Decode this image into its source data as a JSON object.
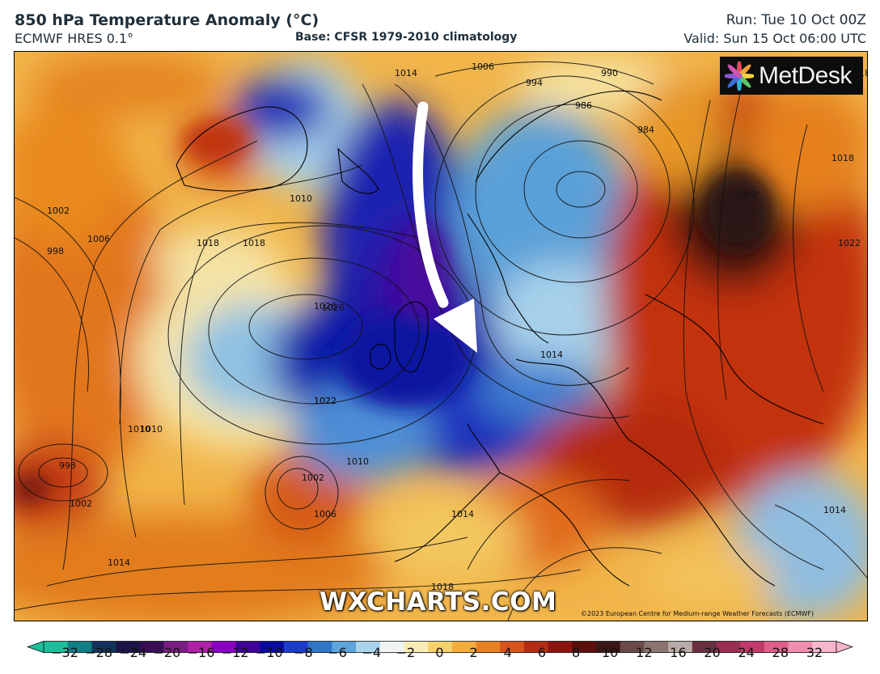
{
  "header": {
    "title": "850 hPa Temperature Anomaly (°C)",
    "model": "ECMWF HRES 0.1°",
    "base": "Base: CFSR 1979-2010 climatology",
    "run": "Run: Tue 10 Oct 00Z",
    "valid": "Valid: Sun 15 Oct 06:00 UTC"
  },
  "logo": {
    "text": "MetDesk"
  },
  "watermark": "WXCHARTS.COM",
  "copyright": "©2023 European Centre for Medium-range Weather Forecasts (ECMWF)",
  "isobar_labels": [
    "1026",
    "1018",
    "1010",
    "1014",
    "1006",
    "994",
    "990",
    "986",
    "984",
    "998",
    "1002",
    "1018",
    "1022",
    "1026",
    "1010",
    "1022",
    "1010",
    "1014",
    "1014",
    "1018",
    "1018",
    "1014",
    "1002",
    "1006",
    "1010",
    "1002",
    "998",
    "1002",
    "1006",
    "1014",
    "1022",
    "1018"
  ],
  "colorbar": {
    "ticks": [
      "−32",
      "−28",
      "−24",
      "−20",
      "−16",
      "−12",
      "−10",
      "−8",
      "−6",
      "−4",
      "−2",
      "0",
      "2",
      "4",
      "6",
      "8",
      "10",
      "12",
      "16",
      "20",
      "24",
      "28",
      "32"
    ],
    "colors": [
      "#1bbf9a",
      "#0f7f86",
      "#12335e",
      "#1a1546",
      "#3a0e56",
      "#7d1b87",
      "#b020a8",
      "#8a00c4",
      "#3e0099",
      "#0b0aa0",
      "#1a3ccc",
      "#2d76c8",
      "#5ca5dc",
      "#a9d3ea",
      "#f0f4f0",
      "#f7edb4",
      "#f6d26b",
      "#f3ac3a",
      "#e9801f",
      "#d8541a",
      "#b52c12",
      "#8c1410",
      "#5c0f0c",
      "#3a1614",
      "#6a4a48",
      "#8a7470",
      "#b8aaa6",
      "#6a3040",
      "#9a2e52",
      "#c23a6c",
      "#e15e8c",
      "#f08db0",
      "#f7b5cc"
    ]
  },
  "arrow": {
    "description_color": "#ffffff"
  }
}
